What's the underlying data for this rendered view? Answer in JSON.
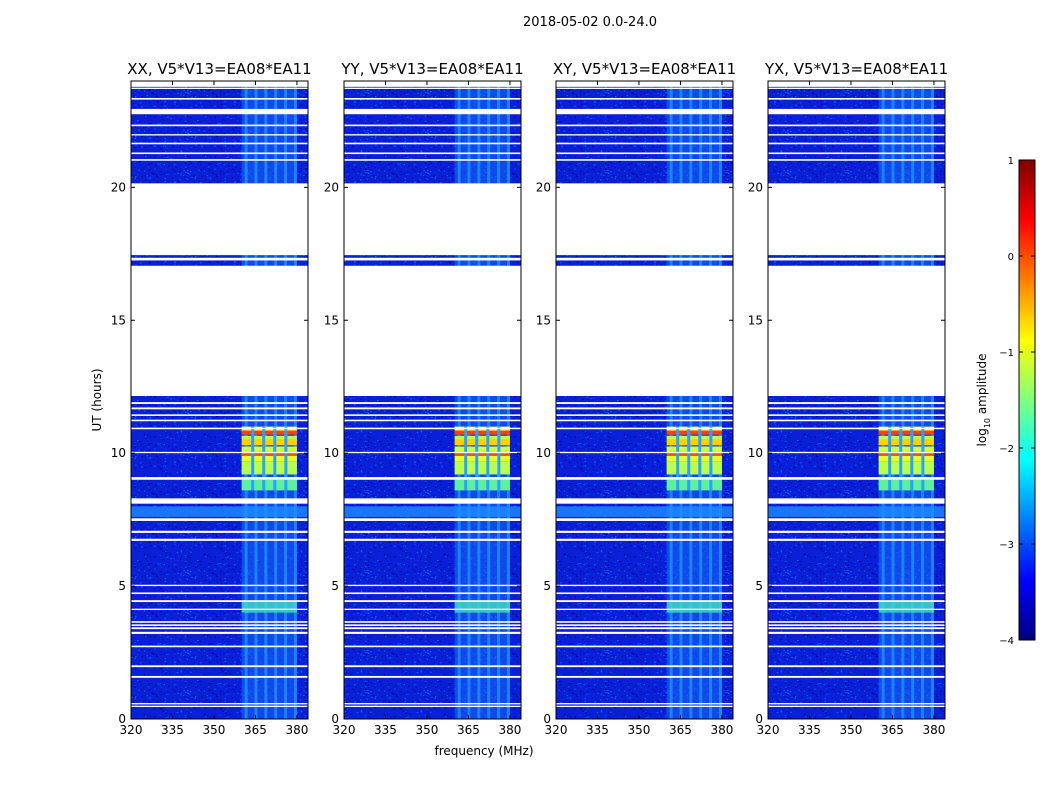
{
  "chart_data": {
    "type": "heatmap",
    "suptitle": "2018-05-02 0.0-24.0",
    "xlabel": "frequency (MHz)",
    "ylabel": "UT (hours)",
    "xlim": [
      320,
      384
    ],
    "ylim": [
      0,
      24
    ],
    "xticks": [
      320,
      335,
      350,
      365,
      380
    ],
    "yticks": [
      0,
      5,
      10,
      15,
      20
    ],
    "colorbar": {
      "label": "log10 amplitude",
      "label_base": "log",
      "label_sub": "10",
      "label_rest": " amplitude",
      "range": [
        -4,
        1
      ],
      "ticks": [
        "1",
        "0",
        "−1",
        "−2",
        "−3",
        "−4"
      ],
      "colors": [
        "#00007f",
        "#0000ff",
        "#007fff",
        "#00ffff",
        "#7fff7f",
        "#ffff00",
        "#ff7f00",
        "#ff0000",
        "#7f0000"
      ]
    },
    "panels": [
      {
        "title": "XX, V5*V13=EA08*EA11",
        "polarization": "XX",
        "rfi_band": [
          360,
          380
        ]
      },
      {
        "title": "YY, V5*V13=EA08*EA11",
        "polarization": "YY",
        "rfi_band": [
          360,
          380
        ]
      },
      {
        "title": "XY, V5*V13=EA08*EA11",
        "polarization": "XY",
        "rfi_band": [
          360,
          380
        ]
      },
      {
        "title": "YX, V5*V13=EA08*EA11",
        "polarization": "YX",
        "rfi_band": [
          360,
          380
        ]
      }
    ],
    "data_gaps_hours": [
      [
        0.45,
        0.5
      ],
      [
        0.55,
        0.6
      ],
      [
        1.55,
        1.62
      ],
      [
        1.95,
        2.02
      ],
      [
        2.7,
        2.76
      ],
      [
        3.2,
        3.28
      ],
      [
        3.38,
        3.45
      ],
      [
        3.5,
        3.56
      ],
      [
        3.62,
        3.68
      ],
      [
        4.1,
        4.15
      ],
      [
        4.4,
        4.47
      ],
      [
        4.7,
        4.76
      ],
      [
        5.0,
        5.05
      ],
      [
        6.7,
        6.78
      ],
      [
        7.0,
        7.08
      ],
      [
        7.45,
        7.55
      ],
      [
        8.1,
        8.3
      ],
      [
        9.0,
        9.1
      ],
      [
        10.0,
        10.05
      ],
      [
        10.9,
        10.96
      ],
      [
        11.2,
        11.26
      ],
      [
        11.4,
        11.46
      ],
      [
        11.65,
        11.72
      ],
      [
        11.85,
        11.92
      ],
      [
        12.15,
        17.05
      ],
      [
        17.25,
        17.35
      ],
      [
        17.45,
        20.15
      ],
      [
        21.0,
        21.06
      ],
      [
        21.25,
        21.31
      ],
      [
        21.62,
        21.68
      ],
      [
        21.95,
        22.0
      ],
      [
        22.3,
        22.36
      ],
      [
        22.75,
        22.95
      ],
      [
        23.3,
        23.36
      ],
      [
        23.7,
        23.75
      ],
      [
        23.78,
        24.0
      ]
    ]
  }
}
